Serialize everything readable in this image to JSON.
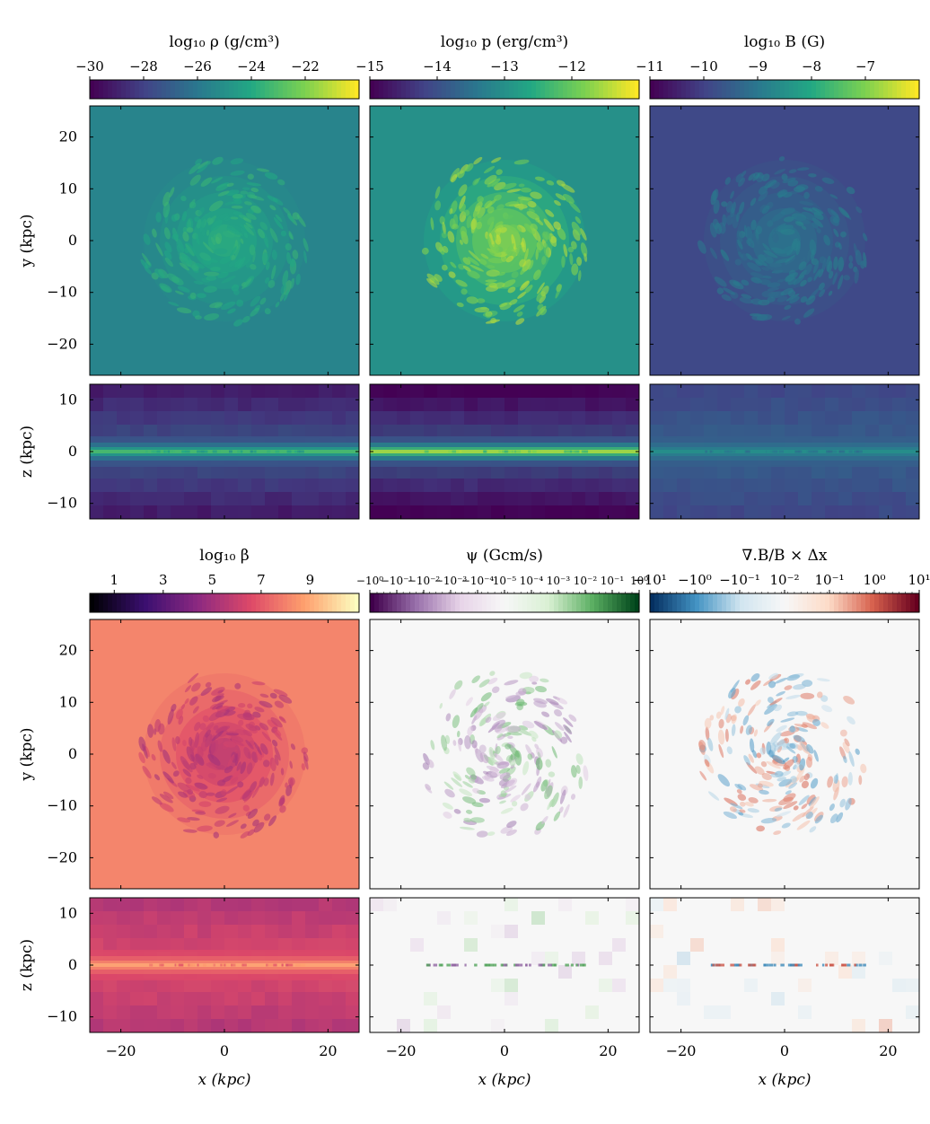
{
  "figure": {
    "top_group_titles": [
      "log₁₀ ρ (g/cm³)",
      "log₁₀ p (erg/cm³)",
      "log₁₀ B (G)"
    ],
    "bottom_group_titles": [
      "log₁₀ β",
      "ψ (Gcm/s)",
      "∇.B/B × Δx"
    ]
  },
  "colors": {
    "viridis": [
      "#440154",
      "#414487",
      "#2a788e",
      "#22a884",
      "#7ad151",
      "#fde725"
    ],
    "magma": [
      "#000004",
      "#3b0f70",
      "#8c2981",
      "#de4968",
      "#fe9f6d",
      "#fcfdbf"
    ],
    "prgn": [
      "#40004b",
      "#9970ab",
      "#e7d4e8",
      "#f7f7f7",
      "#d9f0d3",
      "#5aae61",
      "#00441b"
    ],
    "rdbu_r": [
      "#053061",
      "#4393c3",
      "#d1e5f0",
      "#f7f7f7",
      "#fddbc7",
      "#d6604d",
      "#67001f"
    ]
  },
  "chart_data": [
    {
      "type": "heatmap",
      "title": "log₁₀ ρ (g/cm³)",
      "colormap": "viridis",
      "colorbar_ticks": [
        "−30",
        "−28",
        "−26",
        "−24",
        "−22"
      ],
      "colorbar_range": [
        -30,
        -20
      ],
      "panels": [
        {
          "view": "face-on",
          "ylabel": "y (kpc)",
          "xlim": [
            -26,
            26
          ],
          "ylim": [
            -26,
            26
          ],
          "yticks": [
            "20",
            "10",
            "0",
            "−10",
            "−20"
          ],
          "background_level": 0.45,
          "feature_level": 0.65
        },
        {
          "view": "edge-on",
          "ylabel": "z (kpc)",
          "xlim": [
            -26,
            26
          ],
          "ylim": [
            -13,
            13
          ],
          "yticks": [
            "10",
            "0",
            "−10"
          ],
          "background_level": 0.08,
          "feature_level": 0.7
        }
      ]
    },
    {
      "type": "heatmap",
      "title": "log₁₀ p (erg/cm³)",
      "colormap": "viridis",
      "colorbar_ticks": [
        "−15",
        "−14",
        "−13",
        "−12"
      ],
      "colorbar_range": [
        -15,
        -11
      ],
      "panels": [
        {
          "view": "face-on",
          "xlim": [
            -26,
            26
          ],
          "ylim": [
            -26,
            26
          ],
          "background_level": 0.5,
          "feature_level": 0.88
        },
        {
          "view": "edge-on",
          "xlim": [
            -26,
            26
          ],
          "ylim": [
            -13,
            13
          ],
          "background_level": 0.0,
          "feature_level": 0.88
        }
      ]
    },
    {
      "type": "heatmap",
      "title": "log₁₀ B (G)",
      "colormap": "viridis",
      "colorbar_ticks": [
        "−11",
        "−10",
        "−9",
        "−8",
        "−7"
      ],
      "colorbar_range": [
        -11,
        -6
      ],
      "panels": [
        {
          "view": "face-on",
          "xlim": [
            -26,
            26
          ],
          "ylim": [
            -26,
            26
          ],
          "background_level": 0.22,
          "feature_level": 0.42
        },
        {
          "view": "edge-on",
          "xlim": [
            -26,
            26
          ],
          "ylim": [
            -13,
            13
          ],
          "background_level": 0.22,
          "feature_level": 0.5
        }
      ]
    },
    {
      "type": "heatmap",
      "title": "log₁₀ β",
      "colormap": "magma",
      "colorbar_ticks": [
        "1",
        "3",
        "5",
        "7",
        "9"
      ],
      "colorbar_range": [
        0,
        11
      ],
      "panels": [
        {
          "view": "face-on",
          "ylabel": "y (kpc)",
          "xlim": [
            -26,
            26
          ],
          "ylim": [
            -26,
            26
          ],
          "yticks": [
            "20",
            "10",
            "0",
            "−10",
            "−20"
          ],
          "background_level": 0.74,
          "feature_level": 0.48
        },
        {
          "view": "edge-on",
          "ylabel": "z (kpc)",
          "xlabel": "x (kpc)",
          "xlim": [
            -26,
            26
          ],
          "ylim": [
            -13,
            13
          ],
          "xticks": [
            "−20",
            "0",
            "20"
          ],
          "yticks": [
            "10",
            "0",
            "−10"
          ],
          "background_level": 0.5,
          "feature_level": 0.82
        }
      ]
    },
    {
      "type": "heatmap",
      "title": "ψ (Gcm/s)",
      "colormap": "prgn",
      "colorbar_ticks": [
        "−10⁰",
        "−10⁻¹",
        "−10⁻²",
        "−10⁻³",
        "−10⁻⁴",
        "10⁻⁵",
        "10⁻⁴",
        "10⁻³",
        "10⁻²",
        "10⁻¹",
        "10⁰"
      ],
      "colorbar_scale": "symlog",
      "panels": [
        {
          "view": "face-on",
          "xlim": [
            -26,
            26
          ],
          "ylim": [
            -26,
            26
          ],
          "background_level": 0.5,
          "feature_level": 0.3
        },
        {
          "view": "edge-on",
          "xlabel": "x (kpc)",
          "xlim": [
            -26,
            26
          ],
          "ylim": [
            -13,
            13
          ],
          "xticks": [
            "−20",
            "0",
            "20"
          ],
          "background_level": 0.5,
          "feature_level": 0.15
        }
      ]
    },
    {
      "type": "heatmap",
      "title": "∇.B/B × Δx",
      "colormap": "rdbu_r",
      "colorbar_ticks": [
        "−10¹",
        "−10⁰",
        "−10⁻¹",
        "10⁻²",
        "10⁻¹",
        "10⁰",
        "10¹"
      ],
      "colorbar_scale": "symlog",
      "panels": [
        {
          "view": "face-on",
          "xlim": [
            -26,
            26
          ],
          "ylim": [
            -26,
            26
          ],
          "background_level": 0.5,
          "feature_level": 0.3
        },
        {
          "view": "edge-on",
          "xlabel": "x (kpc)",
          "xlim": [
            -26,
            26
          ],
          "ylim": [
            -13,
            13
          ],
          "xticks": [
            "−20",
            "0",
            "20"
          ],
          "background_level": 0.5,
          "feature_level": 0.3
        }
      ]
    }
  ]
}
